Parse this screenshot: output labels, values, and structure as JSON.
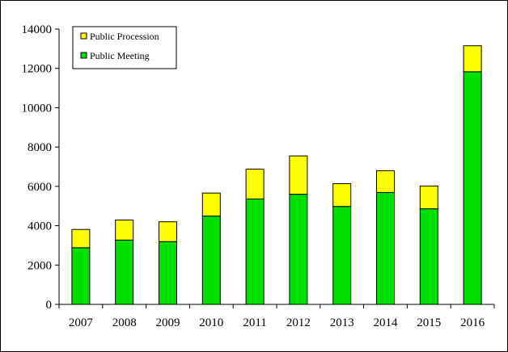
{
  "chart_data": {
    "type": "bar",
    "stacked": true,
    "categories": [
      "2007",
      "2008",
      "2009",
      "2010",
      "2011",
      "2012",
      "2013",
      "2014",
      "2015",
      "2016"
    ],
    "series": [
      {
        "name": "Public Meeting",
        "color": "#00e000",
        "values": [
          2880,
          3270,
          3190,
          4490,
          5360,
          5600,
          4980,
          5690,
          4860,
          11830
        ]
      },
      {
        "name": "Public Procession",
        "color": "#ffff00",
        "values": [
          930,
          1020,
          1010,
          1170,
          1520,
          1950,
          1160,
          1110,
          1160,
          1320
        ]
      }
    ],
    "ylim": [
      0,
      14000
    ],
    "yticks": [
      "0",
      "2000",
      "4000",
      "6000",
      "8000",
      "10000",
      "12000",
      "14000"
    ],
    "legend": {
      "position": "top-left",
      "order": [
        "Public Procession",
        "Public Meeting"
      ]
    },
    "grid": false
  }
}
